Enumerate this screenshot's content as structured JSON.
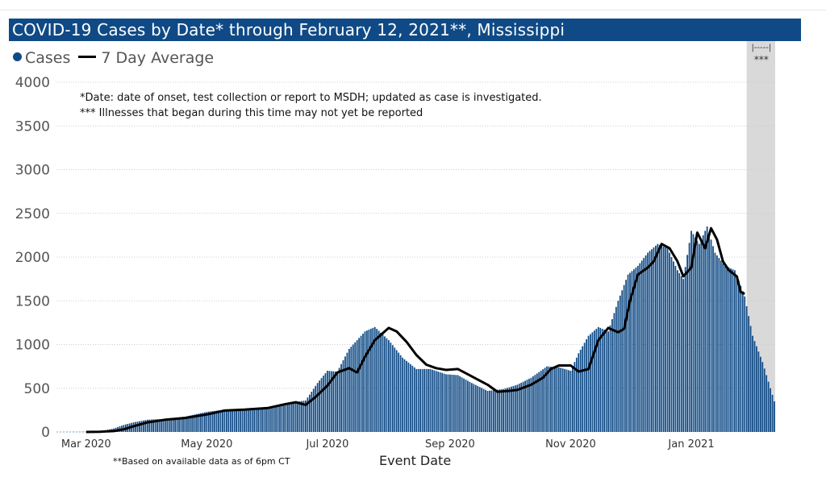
{
  "title": "COVID-19 Cases by Date* through February 12, 2021**, Mississippi",
  "legend": {
    "cases": "Cases",
    "avg": "7 Day Average"
  },
  "annotations": [
    "*Date: date of onset, test collection or report to MSDH; updated as case is investigated.",
    "*** Illnesses that began during this time may not yet be reported"
  ],
  "footnote": "**Based on available data as of 6pm CT",
  "shaded_label": "|-----|\n***",
  "colors": {
    "bars": "#0f4a86",
    "title_bg": "#0f4a86",
    "average": "#000000",
    "shaded": "#d9d9d9"
  },
  "chart_data": {
    "type": "bar",
    "title": "COVID-19 Cases by Date* through February 12, 2021**, Mississippi",
    "xlabel": "Event Date",
    "ylabel": "",
    "ylim": [
      0,
      4000
    ],
    "yticks": [
      0,
      500,
      1000,
      1500,
      2000,
      2500,
      3000,
      3500,
      4000
    ],
    "grid": true,
    "legend_position": "top-left",
    "x_start": "2020-02-15",
    "x_end": "2021-02-12",
    "xtick_labels": [
      {
        "date": "2020-03-01",
        "label": "Mar 2020"
      },
      {
        "date": "2020-05-01",
        "label": "May 2020"
      },
      {
        "date": "2020-07-01",
        "label": "Jul 2020"
      },
      {
        "date": "2020-09-01",
        "label": "Sep 2020"
      },
      {
        "date": "2020-11-01",
        "label": "Nov 2020"
      },
      {
        "date": "2021-01-01",
        "label": "Jan 2021"
      }
    ],
    "shaded_region": {
      "start": "2021-01-29",
      "end": "2021-02-12",
      "label": "***"
    },
    "series": [
      {
        "name": "Cases",
        "kind": "bar",
        "points": [
          [
            "2020-02-15",
            0
          ],
          [
            "2020-03-01",
            2
          ],
          [
            "2020-03-10",
            15
          ],
          [
            "2020-03-15",
            40
          ],
          [
            "2020-03-20",
            80
          ],
          [
            "2020-03-25",
            110
          ],
          [
            "2020-04-01",
            140
          ],
          [
            "2020-04-10",
            150
          ],
          [
            "2020-04-20",
            175
          ],
          [
            "2020-05-01",
            230
          ],
          [
            "2020-05-10",
            255
          ],
          [
            "2020-05-20",
            265
          ],
          [
            "2020-06-01",
            280
          ],
          [
            "2020-06-10",
            330
          ],
          [
            "2020-06-20",
            360
          ],
          [
            "2020-06-26",
            560
          ],
          [
            "2020-07-01",
            700
          ],
          [
            "2020-07-06",
            690
          ],
          [
            "2020-07-12",
            950
          ],
          [
            "2020-07-20",
            1150
          ],
          [
            "2020-07-25",
            1200
          ],
          [
            "2020-08-01",
            1050
          ],
          [
            "2020-08-08",
            850
          ],
          [
            "2020-08-15",
            720
          ],
          [
            "2020-08-22",
            720
          ],
          [
            "2020-08-30",
            660
          ],
          [
            "2020-09-05",
            650
          ],
          [
            "2020-09-12",
            560
          ],
          [
            "2020-09-20",
            470
          ],
          [
            "2020-09-28",
            490
          ],
          [
            "2020-10-05",
            540
          ],
          [
            "2020-10-12",
            620
          ],
          [
            "2020-10-20",
            750
          ],
          [
            "2020-10-26",
            740
          ],
          [
            "2020-11-01",
            700
          ],
          [
            "2020-11-05",
            900
          ],
          [
            "2020-11-10",
            1100
          ],
          [
            "2020-11-15",
            1200
          ],
          [
            "2020-11-20",
            1150
          ],
          [
            "2020-11-25",
            1500
          ],
          [
            "2020-11-30",
            1800
          ],
          [
            "2020-12-05",
            1900
          ],
          [
            "2020-12-10",
            2050
          ],
          [
            "2020-12-15",
            2150
          ],
          [
            "2020-12-20",
            2100
          ],
          [
            "2020-12-25",
            1850
          ],
          [
            "2020-12-28",
            1750
          ],
          [
            "2021-01-01",
            2300
          ],
          [
            "2021-01-05",
            2150
          ],
          [
            "2021-01-09",
            2350
          ],
          [
            "2021-01-13",
            2050
          ],
          [
            "2021-01-18",
            1900
          ],
          [
            "2021-01-23",
            1850
          ],
          [
            "2021-01-28",
            1550
          ],
          [
            "2021-02-01",
            1100
          ],
          [
            "2021-02-06",
            800
          ],
          [
            "2021-02-12",
            350
          ]
        ]
      },
      {
        "name": "7 Day Average",
        "kind": "line",
        "points": [
          [
            "2020-03-01",
            0
          ],
          [
            "2020-03-08",
            3
          ],
          [
            "2020-03-15",
            10
          ],
          [
            "2020-03-20",
            30
          ],
          [
            "2020-03-25",
            65
          ],
          [
            "2020-04-01",
            110
          ],
          [
            "2020-04-10",
            140
          ],
          [
            "2020-04-20",
            160
          ],
          [
            "2020-05-01",
            200
          ],
          [
            "2020-05-10",
            245
          ],
          [
            "2020-05-20",
            255
          ],
          [
            "2020-06-01",
            275
          ],
          [
            "2020-06-10",
            320
          ],
          [
            "2020-06-15",
            340
          ],
          [
            "2020-06-20",
            310
          ],
          [
            "2020-06-25",
            400
          ],
          [
            "2020-07-01",
            530
          ],
          [
            "2020-07-06",
            680
          ],
          [
            "2020-07-12",
            730
          ],
          [
            "2020-07-16",
            680
          ],
          [
            "2020-07-20",
            860
          ],
          [
            "2020-07-25",
            1050
          ],
          [
            "2020-08-01",
            1190
          ],
          [
            "2020-08-05",
            1150
          ],
          [
            "2020-08-10",
            1030
          ],
          [
            "2020-08-15",
            880
          ],
          [
            "2020-08-20",
            770
          ],
          [
            "2020-08-25",
            730
          ],
          [
            "2020-08-30",
            710
          ],
          [
            "2020-09-05",
            720
          ],
          [
            "2020-09-10",
            660
          ],
          [
            "2020-09-15",
            600
          ],
          [
            "2020-09-20",
            540
          ],
          [
            "2020-09-25",
            460
          ],
          [
            "2020-10-01",
            470
          ],
          [
            "2020-10-05",
            480
          ],
          [
            "2020-10-12",
            540
          ],
          [
            "2020-10-18",
            620
          ],
          [
            "2020-10-22",
            720
          ],
          [
            "2020-10-26",
            760
          ],
          [
            "2020-11-01",
            760
          ],
          [
            "2020-11-05",
            690
          ],
          [
            "2020-11-10",
            720
          ],
          [
            "2020-11-15",
            1050
          ],
          [
            "2020-11-20",
            1190
          ],
          [
            "2020-11-25",
            1140
          ],
          [
            "2020-11-28",
            1180
          ],
          [
            "2020-12-01",
            1500
          ],
          [
            "2020-12-05",
            1800
          ],
          [
            "2020-12-10",
            1880
          ],
          [
            "2020-12-13",
            1950
          ],
          [
            "2020-12-17",
            2150
          ],
          [
            "2020-12-21",
            2100
          ],
          [
            "2020-12-25",
            1950
          ],
          [
            "2020-12-28",
            1780
          ],
          [
            "2021-01-01",
            1880
          ],
          [
            "2021-01-04",
            2280
          ],
          [
            "2021-01-08",
            2100
          ],
          [
            "2021-01-11",
            2330
          ],
          [
            "2021-01-14",
            2200
          ],
          [
            "2021-01-17",
            1950
          ],
          [
            "2021-01-20",
            1850
          ],
          [
            "2021-01-24",
            1780
          ],
          [
            "2021-01-26",
            1600
          ],
          [
            "2021-01-28",
            1580
          ]
        ]
      }
    ]
  }
}
